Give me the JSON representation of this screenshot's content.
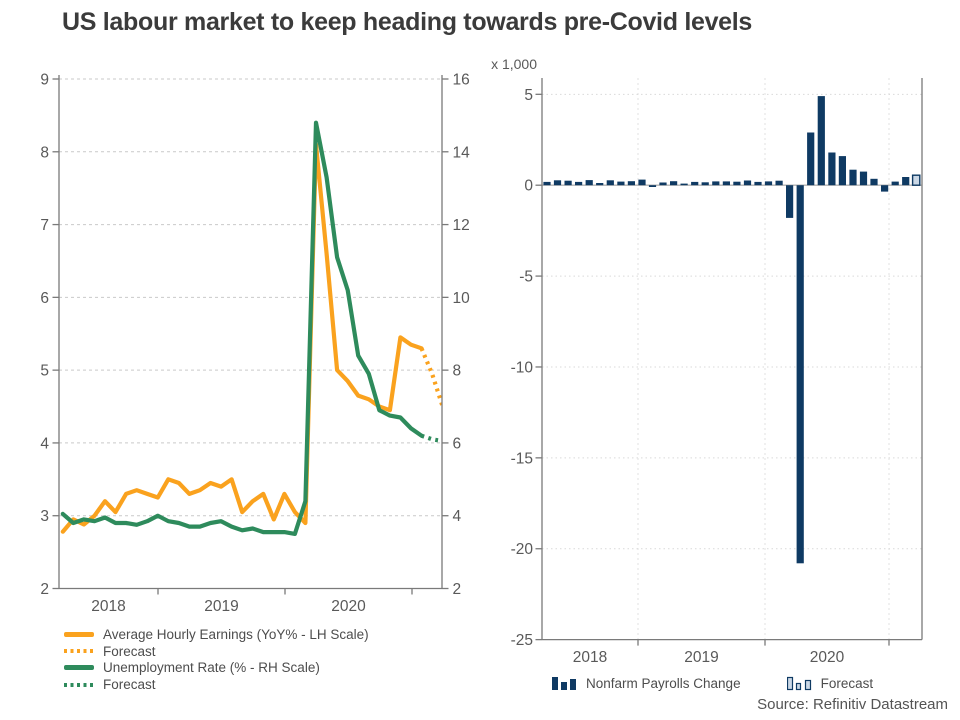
{
  "title": "US labour market to keep heading towards pre-Covid levels",
  "source": "Source: Refinitiv Datastream",
  "colors": {
    "orange": "#FAA21E",
    "green": "#2E8B5C",
    "navy": "#0F3A63",
    "forecast_fill": "#CBD8E6",
    "axis": "#7A7A7A",
    "tick_text": "#595959",
    "grid_left": "#C9C9C9",
    "grid_right_v": "#E2E2E2",
    "grid_right_h": "#D9D9D9",
    "zero_line": "#B3B3B3",
    "title_text": "#3B3B3B",
    "legend_text": "#4D4D4D"
  },
  "chart_data": [
    {
      "type": "line",
      "panel": "left",
      "x_freq": "monthly",
      "x_start": "2018-04",
      "x_tick_labels": [
        "2018",
        "2019",
        "2020"
      ],
      "lh_axis": {
        "range": [
          2,
          9
        ],
        "ticks": [
          9,
          8,
          7,
          6,
          5,
          4,
          3,
          2
        ]
      },
      "rh_axis": {
        "range": [
          2,
          16
        ],
        "ticks": [
          16,
          14,
          12,
          10,
          8,
          6,
          4,
          2
        ]
      },
      "grid": "horizontal-dashed",
      "legend_position": "bottom-left",
      "series": [
        {
          "name": "Average Hourly Earnings (YoY% - LH Scale)",
          "axis": "LH",
          "color_key": "orange",
          "forecast_label": "Forecast",
          "values": [
            2.78,
            2.95,
            2.88,
            3.0,
            3.2,
            3.05,
            3.3,
            3.35,
            3.3,
            3.25,
            3.5,
            3.45,
            3.3,
            3.35,
            3.45,
            3.4,
            3.5,
            3.05,
            3.2,
            3.3,
            2.95,
            3.3,
            3.05,
            2.9,
            8.1,
            6.6,
            5.0,
            4.85,
            4.65,
            4.6,
            4.5,
            4.45,
            5.45,
            5.35,
            5.3
          ],
          "forecast_values": [
            4.95,
            4.5
          ]
        },
        {
          "name": "Unemployment Rate (% - RH Scale)",
          "axis": "RH",
          "color_key": "green",
          "forecast_label": "Forecast",
          "values": [
            4.05,
            3.8,
            3.9,
            3.85,
            3.95,
            3.8,
            3.8,
            3.75,
            3.85,
            4.0,
            3.85,
            3.8,
            3.7,
            3.7,
            3.8,
            3.85,
            3.7,
            3.6,
            3.65,
            3.55,
            3.55,
            3.55,
            3.5,
            4.4,
            14.8,
            13.3,
            11.1,
            10.2,
            8.4,
            7.9,
            6.9,
            6.75,
            6.7,
            6.4,
            6.2
          ],
          "forecast_values": [
            6.1,
            6.05
          ]
        }
      ]
    },
    {
      "type": "bar",
      "panel": "right",
      "units_label": "x 1,000",
      "x_freq": "monthly",
      "x_start": "2018-04",
      "x_tick_labels": [
        "2018",
        "2019",
        "2020"
      ],
      "y_axis": {
        "range": [
          -25,
          5
        ],
        "ticks": [
          5,
          0,
          -5,
          -10,
          -15,
          -20,
          -25
        ]
      },
      "grid": "horizontal-dotted-plus-vertical-year-dashed",
      "series_label": "Nonfarm Payrolls Change",
      "forecast_label": "Forecast",
      "values": [
        0.18,
        0.27,
        0.25,
        0.18,
        0.28,
        0.12,
        0.27,
        0.2,
        0.22,
        0.31,
        -0.1,
        0.15,
        0.22,
        0.09,
        0.18,
        0.16,
        0.21,
        0.21,
        0.19,
        0.26,
        0.18,
        0.21,
        0.25,
        -1.8,
        -20.8,
        2.9,
        4.9,
        1.8,
        1.6,
        0.85,
        0.75,
        0.35,
        -0.35,
        0.2,
        0.45
      ],
      "forecast_values": [
        0.55
      ]
    }
  ]
}
